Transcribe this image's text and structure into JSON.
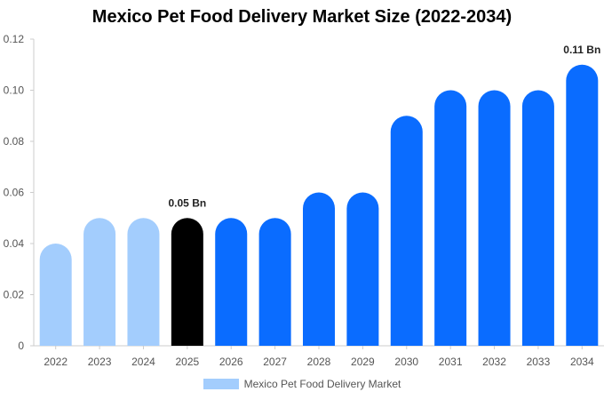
{
  "chart_data": {
    "type": "bar",
    "title": "Mexico Pet Food Delivery Market Size (2022-2034)",
    "categories": [
      "2022",
      "2023",
      "2024",
      "2025",
      "2026",
      "2027",
      "2028",
      "2029",
      "2030",
      "2031",
      "2032",
      "2033",
      "2034"
    ],
    "series": [
      {
        "name": "Mexico Pet Food Delivery Market",
        "values": [
          0.04,
          0.05,
          0.05,
          0.05,
          0.05,
          0.05,
          0.06,
          0.06,
          0.09,
          0.1,
          0.1,
          0.1,
          0.11
        ]
      }
    ],
    "bar_colors": [
      "#a3cdfd",
      "#a3cdfd",
      "#a3cdfd",
      "#000000",
      "#0a6cff",
      "#0a6cff",
      "#0a6cff",
      "#0a6cff",
      "#0a6cff",
      "#0a6cff",
      "#0a6cff",
      "#0a6cff",
      "#0a6cff"
    ],
    "data_labels": [
      {
        "category": "2025",
        "text": "0.05 Bn"
      },
      {
        "category": "2034",
        "text": "0.11 Bn"
      }
    ],
    "y_ticks": [
      "0",
      "0.02",
      "0.04",
      "0.06",
      "0.08",
      "0.10",
      "0.12"
    ],
    "ylim": [
      0,
      0.12
    ],
    "xlabel": "",
    "ylabel": "",
    "legend_position": "bottom",
    "grid": false
  },
  "legend": {
    "label": "Mexico Pet Food Delivery Market",
    "color": "#a3cdfd"
  }
}
